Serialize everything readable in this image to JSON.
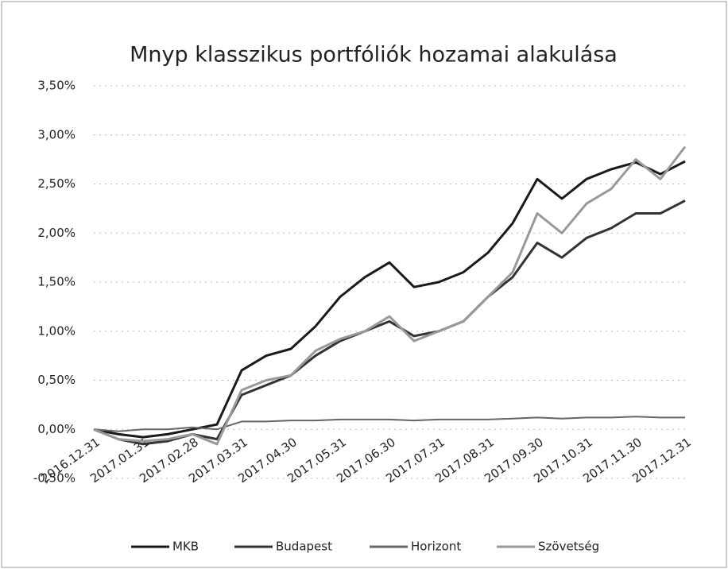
{
  "chart_data": {
    "type": "line",
    "title": "Mnyp klasszikus portfóliók hozamai alakulása",
    "categories": [
      "2016.12.31",
      null,
      "2017.01.31",
      null,
      "2017.02.28",
      null,
      "2017.03.31",
      null,
      "2017.04.30",
      null,
      "2017.05.31",
      null,
      "2017.06.30",
      null,
      "2017.07.31",
      null,
      "2017.08.31",
      null,
      "2017.09.30",
      null,
      "2017.10.31",
      null,
      "2017.11.30",
      null,
      "2017.12.31"
    ],
    "series": [
      {
        "name": "MKB",
        "color": "#1a1a1a",
        "values": [
          0,
          -0.05,
          -0.08,
          -0.05,
          0.0,
          0.05,
          0.6,
          0.75,
          0.82,
          1.05,
          1.35,
          1.55,
          1.7,
          1.45,
          1.5,
          1.6,
          1.8,
          2.1,
          2.55,
          2.35,
          2.55,
          2.65,
          2.72,
          2.6,
          2.73
        ]
      },
      {
        "name": "Budapest",
        "color": "#333333",
        "values": [
          0,
          -0.1,
          -0.15,
          -0.12,
          -0.05,
          -0.1,
          0.35,
          0.45,
          0.55,
          0.75,
          0.9,
          1.0,
          1.1,
          0.95,
          1.0,
          1.1,
          1.35,
          1.55,
          1.9,
          1.75,
          1.95,
          2.05,
          2.2,
          2.2,
          2.33
        ]
      },
      {
        "name": "Horizont",
        "color": "#666666",
        "values": [
          0,
          -0.02,
          0,
          0,
          0.02,
          0,
          0.08,
          0.08,
          0.09,
          0.09,
          0.1,
          0.1,
          0.1,
          0.09,
          0.1,
          0.1,
          0.1,
          0.11,
          0.12,
          0.11,
          0.12,
          0.12,
          0.13,
          0.12,
          0.12
        ]
      },
      {
        "name": "Szövetség",
        "color": "#999999",
        "values": [
          0,
          -0.1,
          -0.12,
          -0.1,
          -0.05,
          -0.15,
          0.4,
          0.5,
          0.55,
          0.8,
          0.92,
          1.0,
          1.15,
          0.9,
          1.0,
          1.1,
          1.35,
          1.6,
          2.2,
          2.0,
          2.3,
          2.45,
          2.75,
          2.55,
          2.88
        ]
      }
    ],
    "ylim": [
      -0.5,
      3.5
    ],
    "yticks": [
      {
        "value": -0.5,
        "label": "-0,50%"
      },
      {
        "value": 0,
        "label": "0,00%"
      },
      {
        "value": 0.5,
        "label": "0,50%"
      },
      {
        "value": 1,
        "label": "1,00%"
      },
      {
        "value": 1.5,
        "label": "1,50%"
      },
      {
        "value": 2,
        "label": "2,00%"
      },
      {
        "value": 2.5,
        "label": "2,50%"
      },
      {
        "value": 3,
        "label": "3,00%"
      },
      {
        "value": 3.5,
        "label": "3,50%"
      }
    ],
    "grid": true
  }
}
